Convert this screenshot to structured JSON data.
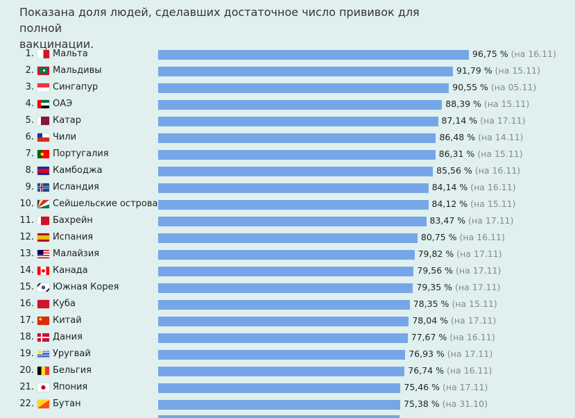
{
  "header": {
    "line1": "Показана доля людей, сделавших достаточное число прививок для полной",
    "line2": "вакцинации."
  },
  "colors": {
    "bar": "#77a6e8",
    "background": "#dff0ee"
  },
  "chart_data": {
    "type": "bar",
    "orientation": "horizontal",
    "value_unit": "%",
    "rows": [
      {
        "rank": "1.",
        "country": "Мальта",
        "flag": "flag-malta",
        "value": 96.75,
        "label": "96,75 %",
        "date": "(на 16.11)"
      },
      {
        "rank": "2.",
        "country": "Мальдивы",
        "flag": "flag-maldives",
        "value": 91.79,
        "label": "91,79 %",
        "date": "(на 15.11)"
      },
      {
        "rank": "3.",
        "country": "Сингапур",
        "flag": "flag-singapore",
        "value": 90.55,
        "label": "90,55 %",
        "date": "(на 05.11)"
      },
      {
        "rank": "4.",
        "country": "ОАЭ",
        "flag": "flag-uae",
        "value": 88.39,
        "label": "88,39 %",
        "date": "(на 15.11)"
      },
      {
        "rank": "5.",
        "country": "Катар",
        "flag": "flag-qatar",
        "value": 87.14,
        "label": "87,14 %",
        "date": "(на 17.11)"
      },
      {
        "rank": "6.",
        "country": "Чили",
        "flag": "flag-chile",
        "value": 86.48,
        "label": "86,48 %",
        "date": "(на 14.11)"
      },
      {
        "rank": "7.",
        "country": "Португалия",
        "flag": "flag-portugal",
        "value": 86.31,
        "label": "86,31 %",
        "date": "(на 15.11)"
      },
      {
        "rank": "8.",
        "country": "Камбоджа",
        "flag": "flag-cambodia",
        "value": 85.56,
        "label": "85,56 %",
        "date": "(на 16.11)"
      },
      {
        "rank": "9.",
        "country": "Исландия",
        "flag": "flag-iceland",
        "value": 84.14,
        "label": "84,14 %",
        "date": "(на 16.11)"
      },
      {
        "rank": "10.",
        "country": "Сейшельские острова",
        "flag": "flag-seychelles",
        "value": 84.12,
        "label": "84,12 %",
        "date": "(на 15.11)"
      },
      {
        "rank": "11.",
        "country": "Бахрейн",
        "flag": "flag-bahrain",
        "value": 83.47,
        "label": "83,47 %",
        "date": "(на 17.11)"
      },
      {
        "rank": "12.",
        "country": "Испания",
        "flag": "flag-spain",
        "value": 80.75,
        "label": "80,75 %",
        "date": "(на 16.11)"
      },
      {
        "rank": "13.",
        "country": "Малайзия",
        "flag": "flag-malaysia",
        "value": 79.82,
        "label": "79,82 %",
        "date": "(на 17.11)"
      },
      {
        "rank": "14.",
        "country": "Канада",
        "flag": "flag-canada",
        "value": 79.56,
        "label": "79,56 %",
        "date": "(на 17.11)"
      },
      {
        "rank": "15.",
        "country": "Южная Корея",
        "flag": "flag-south-korea",
        "value": 79.35,
        "label": "79,35 %",
        "date": "(на 17.11)"
      },
      {
        "rank": "16.",
        "country": "Куба",
        "flag": "flag-cuba",
        "value": 78.35,
        "label": "78,35 %",
        "date": "(на 15.11)"
      },
      {
        "rank": "17.",
        "country": "Китай",
        "flag": "flag-china",
        "value": 78.04,
        "label": "78,04 %",
        "date": "(на 17.11)"
      },
      {
        "rank": "18.",
        "country": "Дания",
        "flag": "flag-denmark",
        "value": 77.67,
        "label": "77,67 %",
        "date": "(на 16.11)"
      },
      {
        "rank": "19.",
        "country": "Уругвай",
        "flag": "flag-uruguay",
        "value": 76.93,
        "label": "76,93 %",
        "date": "(на 17.11)"
      },
      {
        "rank": "20.",
        "country": "Бельгия",
        "flag": "flag-belgium",
        "value": 76.74,
        "label": "76,74 %",
        "date": "(на 16.11)"
      },
      {
        "rank": "21.",
        "country": "Япония",
        "flag": "flag-japan",
        "value": 75.46,
        "label": "75,46 %",
        "date": "(на 17.11)"
      },
      {
        "rank": "22.",
        "country": "Бутан",
        "flag": "flag-bhutan",
        "value": 75.38,
        "label": "75,38 %",
        "date": "(на 31.10)"
      }
    ]
  }
}
